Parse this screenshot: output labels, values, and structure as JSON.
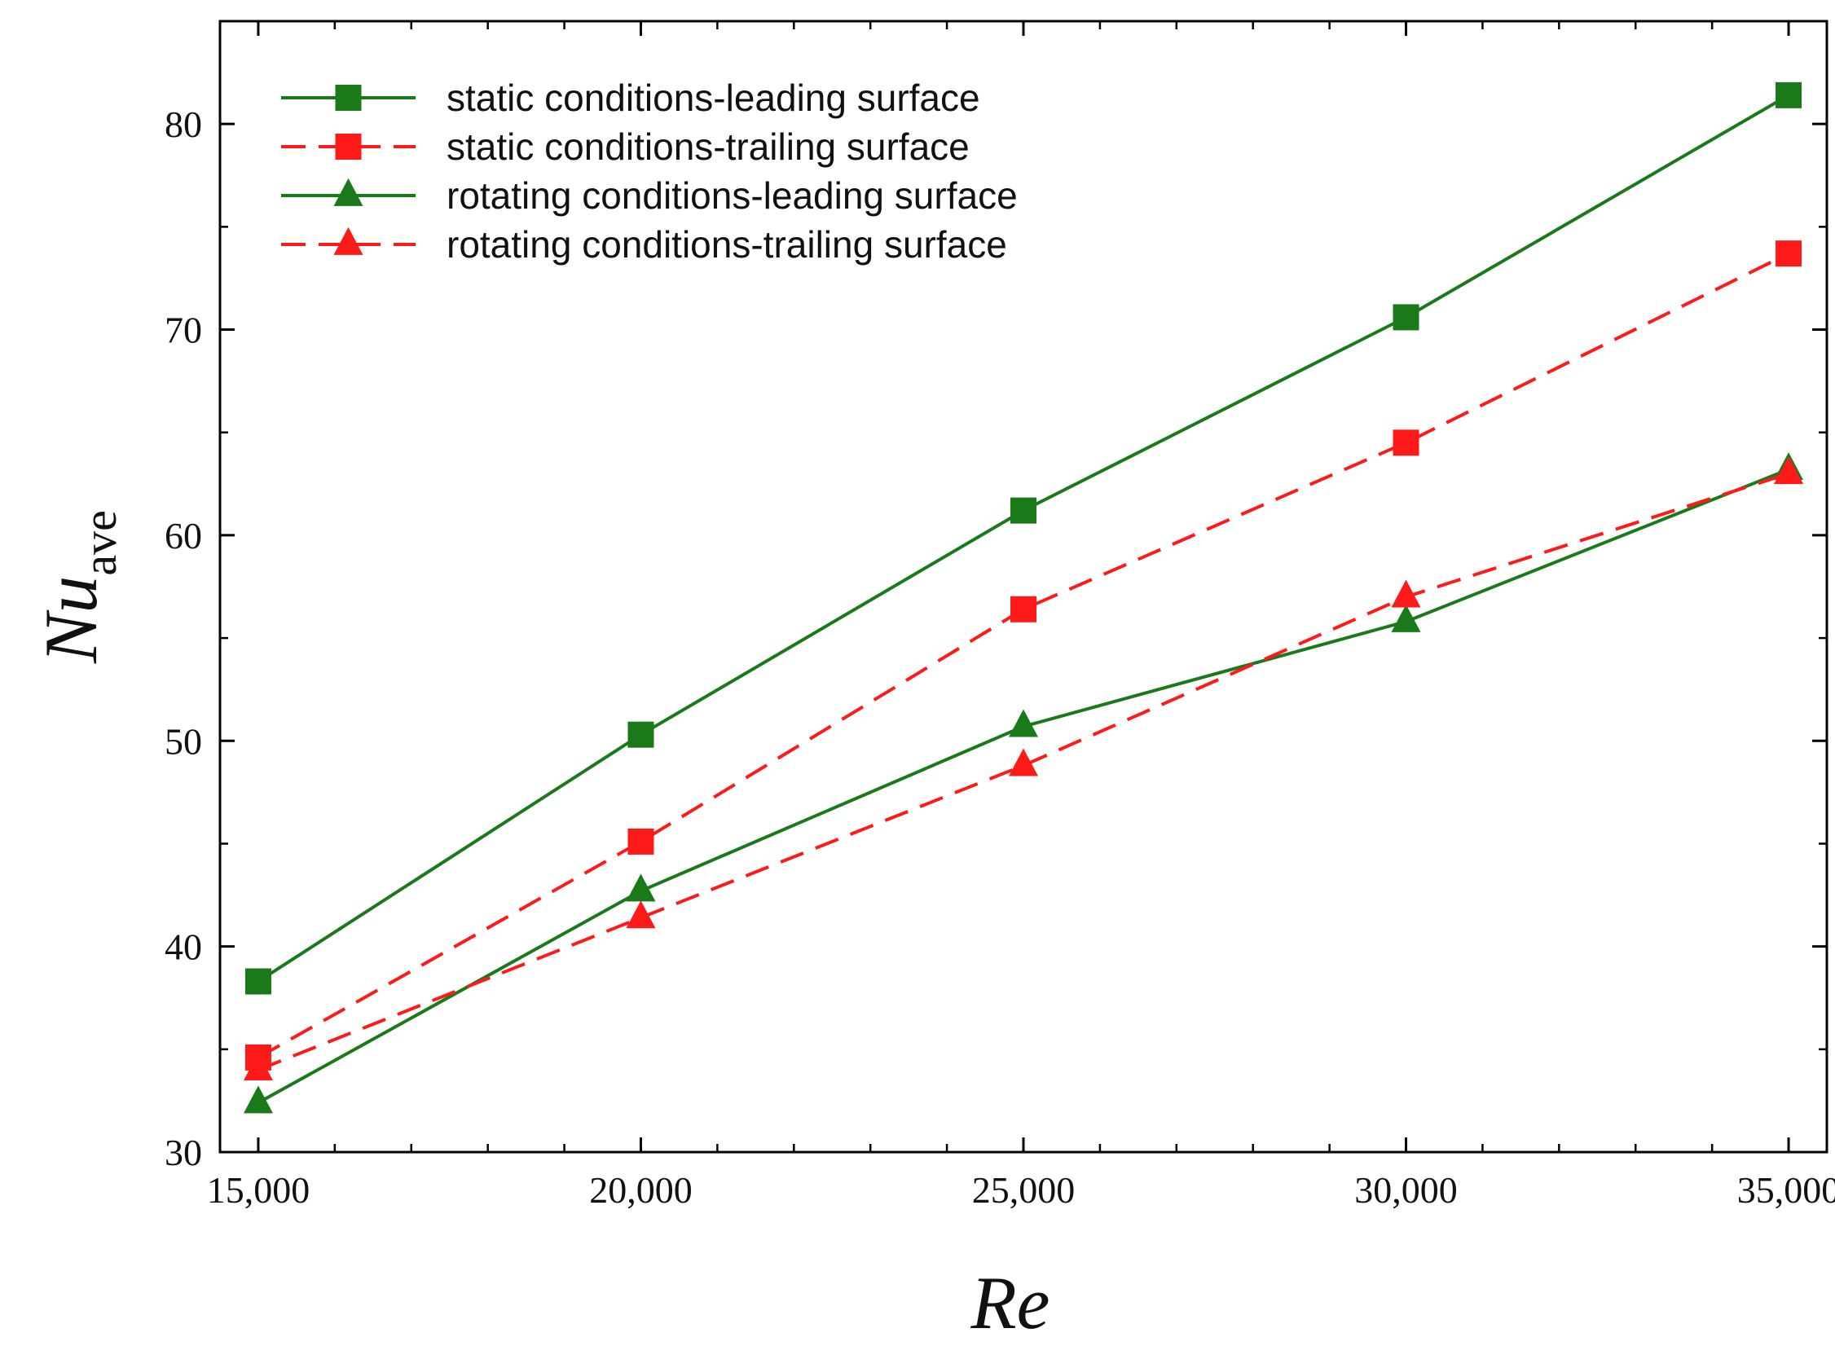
{
  "chart_data": {
    "type": "line",
    "title": "",
    "xlabel": "Re",
    "ylabel": {
      "main": "Nu",
      "subscript": "ave"
    },
    "xlim": [
      14500,
      35500
    ],
    "ylim": [
      30,
      85
    ],
    "x_ticks": [
      15000,
      20000,
      25000,
      30000,
      35000
    ],
    "x_tick_labels": [
      "15,000",
      "20,000",
      "25,000",
      "30,000",
      "35,000"
    ],
    "y_ticks": [
      30,
      40,
      50,
      60,
      70,
      80
    ],
    "y_tick_labels": [
      "30",
      "40",
      "50",
      "60",
      "70",
      "80"
    ],
    "grid": false,
    "legend_position": "top-left",
    "x": [
      15000,
      20000,
      25000,
      30000,
      35000
    ],
    "series": [
      {
        "name": "static conditions-leading surface",
        "values": [
          38.3,
          50.3,
          61.2,
          70.6,
          81.4
        ],
        "color": "#1a7a1a",
        "dash": "solid",
        "marker": "square"
      },
      {
        "name": "static conditions-trailing surface",
        "values": [
          34.6,
          45.1,
          56.4,
          64.5,
          73.7
        ],
        "color": "#ff1a1a",
        "dash": "dashed",
        "marker": "square"
      },
      {
        "name": "rotating conditions-leading surface",
        "values": [
          32.4,
          42.7,
          50.7,
          55.8,
          63.2
        ],
        "color": "#1a7a1a",
        "dash": "solid",
        "marker": "triangle"
      },
      {
        "name": "rotating conditions-trailing surface",
        "values": [
          34.0,
          41.4,
          48.8,
          57.0,
          63.0
        ],
        "color": "#ff1a1a",
        "dash": "dashed",
        "marker": "triangle"
      }
    ]
  }
}
